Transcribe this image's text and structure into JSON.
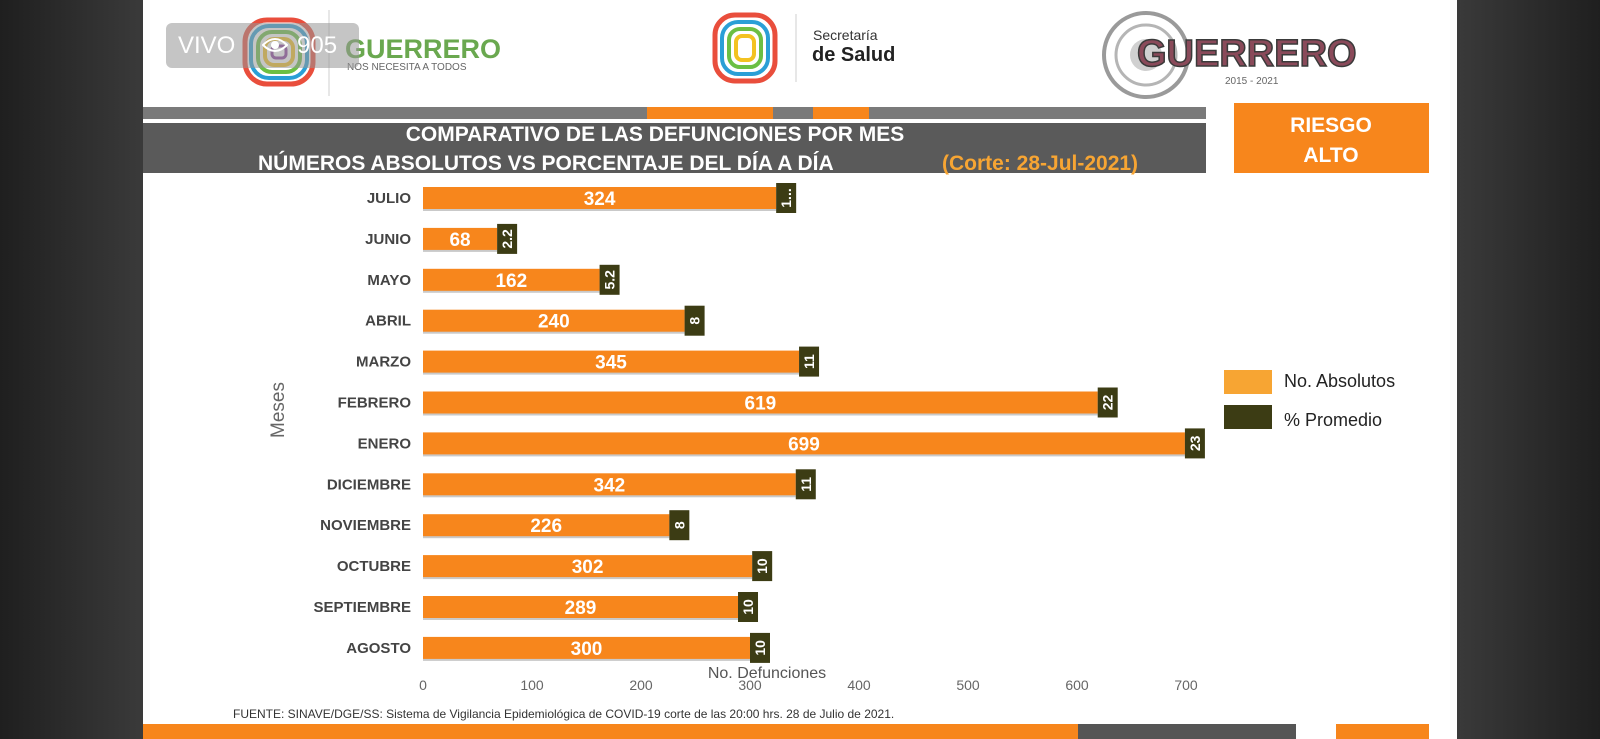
{
  "live": {
    "label": "VIVO",
    "viewers": "905"
  },
  "header": {
    "left_logo_text": "GUERRERO",
    "left_logo_sub": "NOS NECESITA A TODOS",
    "center_logo_line1": "Secretaría",
    "center_logo_line2": "de Salud",
    "right_logo_text": "GUERRERO",
    "right_logo_years": "2015 - 2021"
  },
  "banner": {
    "line1": "COMPARATIVO DE LAS DEFUNCIONES POR MES",
    "line2": "NÚMEROS ABSOLUTOS VS PORCENTAJE DEL DÍA A DÍA",
    "cutoff": "(Corte: 28-Jul-2021)"
  },
  "risk": {
    "line1": "RIESGO",
    "line2": "ALTO"
  },
  "source_note": "FUENTE: SINAVE/DGE/SS:  Sistema de Vigilancia Epidemiológica de COVID-19 corte de las 20:00 hrs. 28 de Julio de 2021.",
  "colors": {
    "absolute": "#f7861c",
    "percent": "#3c3c14",
    "banner": "#5a5a5a",
    "accent": "#f7861c"
  },
  "chart_data": {
    "type": "bar",
    "orientation": "horizontal",
    "categories": [
      "JULIO",
      "JUNIO",
      "MAYO",
      "ABRIL",
      "MARZO",
      "FEBRERO",
      "ENERO",
      "DICIEMBRE",
      "NOVIEMBRE",
      "OCTUBRE",
      "SEPTIEMBRE",
      "AGOSTO"
    ],
    "series": [
      {
        "name": "No. Absolutos",
        "values": [
          324,
          68,
          162,
          240,
          345,
          619,
          699,
          342,
          226,
          302,
          289,
          300
        ],
        "labels": [
          "324",
          "68",
          "162",
          "240",
          "345",
          "619",
          "699",
          "342",
          "226",
          "302",
          "289",
          "300"
        ],
        "color": "#f7861c"
      },
      {
        "name": "% Promedio",
        "values": [
          1,
          2.2,
          5.2,
          8,
          11,
          22,
          23,
          11,
          8,
          10,
          10,
          10
        ],
        "labels": [
          "1...",
          "2.2",
          "5.2",
          "8",
          "11",
          "22",
          "23",
          "11",
          "8",
          "10",
          "10",
          "10"
        ],
        "color": "#3c3c14"
      }
    ],
    "stacked": true,
    "xlabel": "No. Defunciones",
    "ylabel": "Meses",
    "xticks": [
      0,
      100,
      200,
      300,
      400,
      500,
      600,
      700
    ],
    "xlim": [
      0,
      720
    ],
    "legend": "right"
  }
}
